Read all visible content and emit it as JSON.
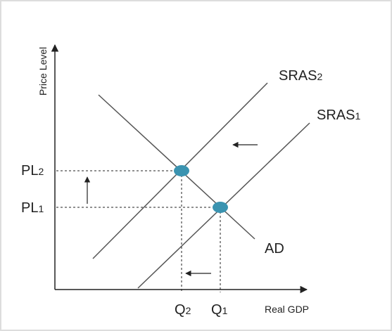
{
  "axes": {
    "y_label": "Price Level",
    "x_label": "Real GDP"
  },
  "curves": [
    {
      "name": "SRAS",
      "sub": "2"
    },
    {
      "name": "SRAS",
      "sub": "1"
    },
    {
      "name": "AD"
    }
  ],
  "price_levels": [
    {
      "name": "PL",
      "sub": "2"
    },
    {
      "name": "PL",
      "sub": "1"
    }
  ],
  "quantities": [
    {
      "name": "Q",
      "sub": "2"
    },
    {
      "name": "Q",
      "sub": "1"
    }
  ]
}
